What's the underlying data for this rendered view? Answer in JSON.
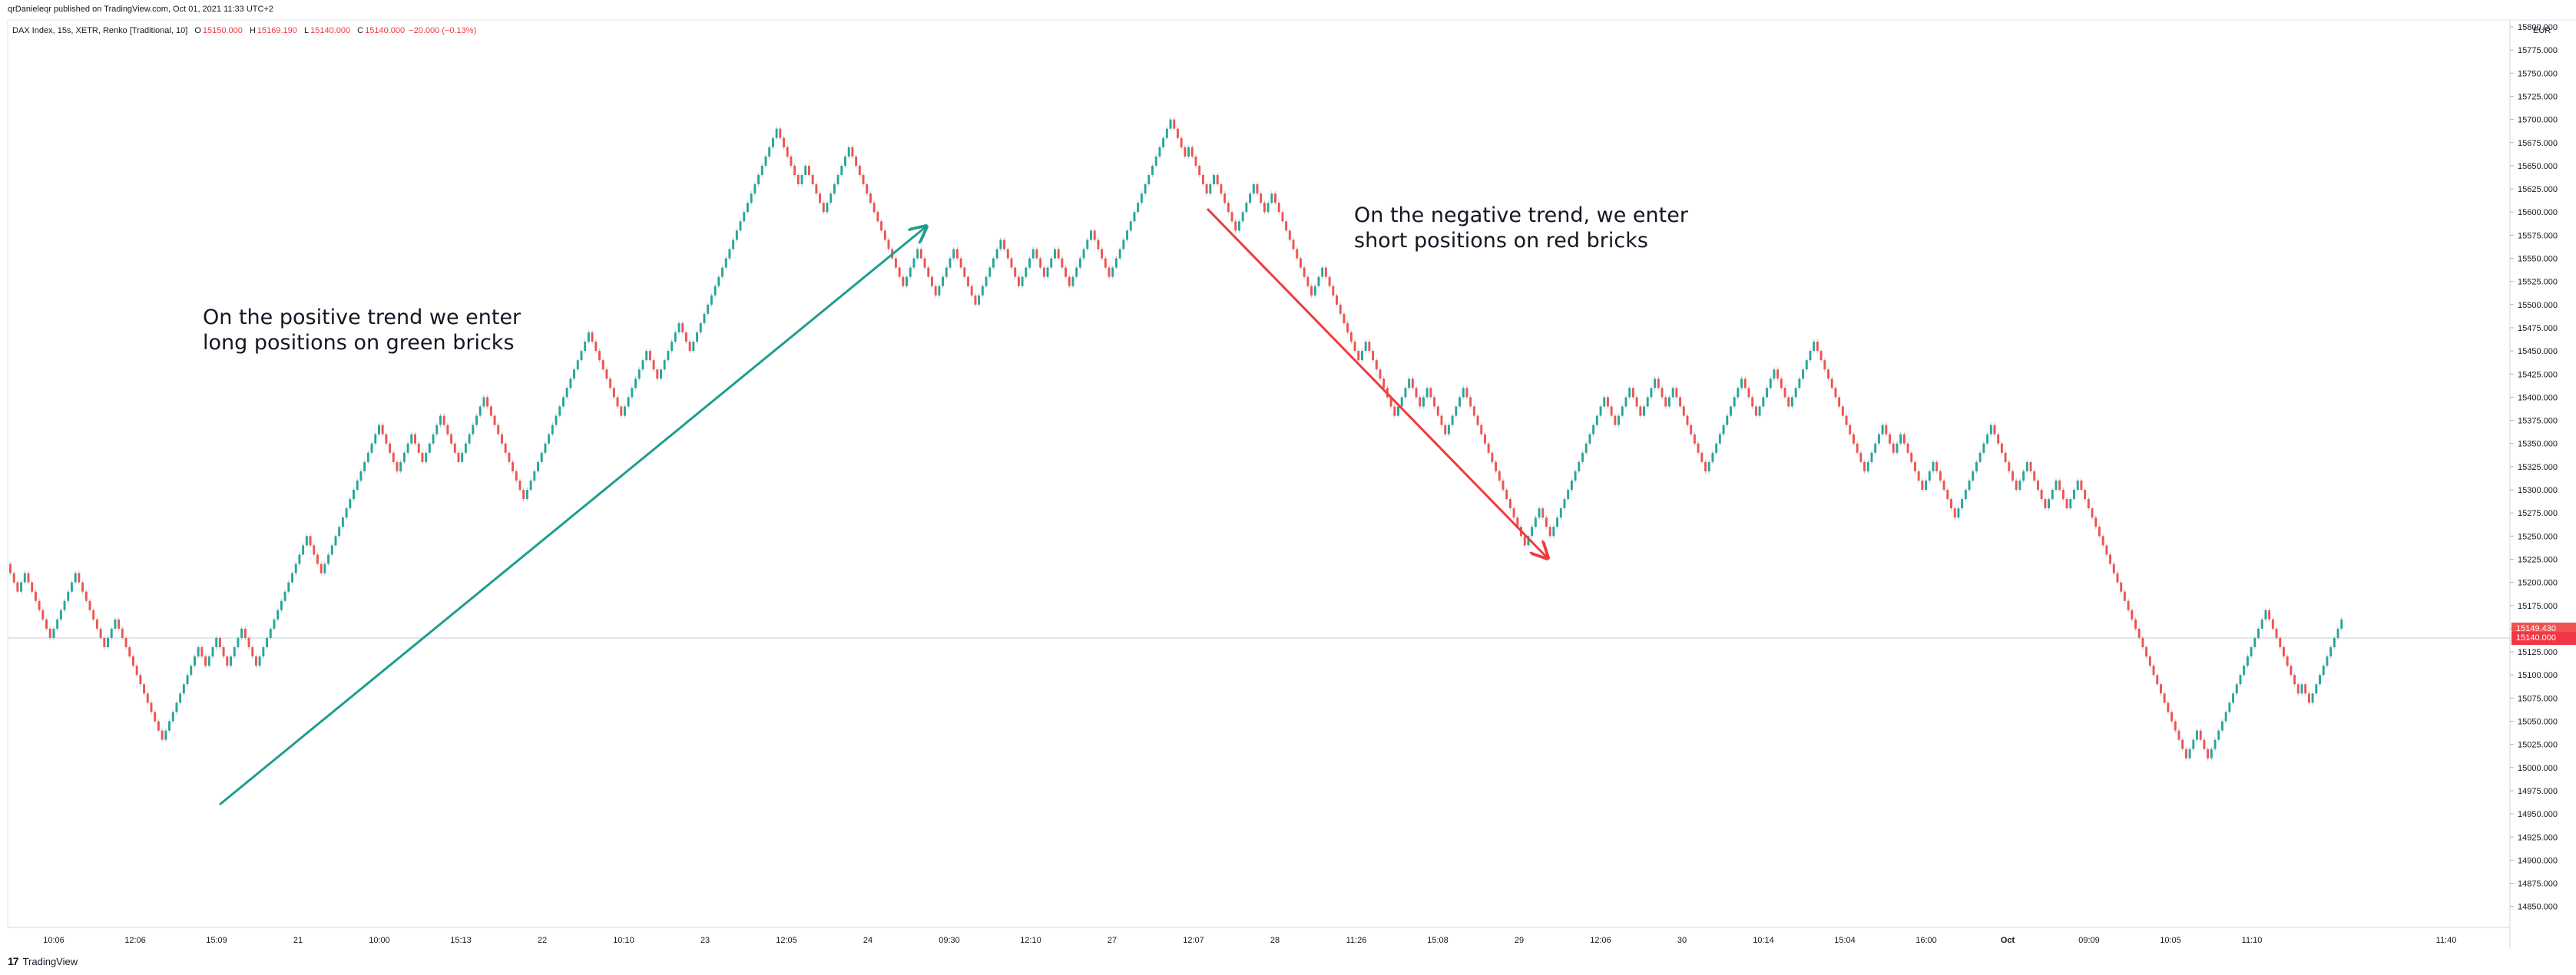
{
  "header": {
    "published_by": "qrDanieleqr published on TradingView.com, Oct 01, 2021 11:33 UTC+2",
    "symbol": "DAX Index, 15s, XETR, Renko [Traditional, 10]",
    "ohlc": [
      {
        "key": "O",
        "value": "15150.000"
      },
      {
        "key": "H",
        "value": "15169.190"
      },
      {
        "key": "L",
        "value": "15140.000"
      },
      {
        "key": "C",
        "value": "15140.000"
      }
    ],
    "change": "−20.000 (−0.13%)",
    "currency": "EUR"
  },
  "annotations": {
    "positive": [
      "On the positive trend we enter",
      "long positions on green bricks"
    ],
    "negative": [
      "On the negative trend, we enter",
      "short positions on red bricks"
    ]
  },
  "footer": {
    "logo": "17",
    "brand": "TradingView"
  },
  "colors": {
    "up": "#26a69a",
    "down": "#ef5350",
    "arrow_up": "#1f9e8f",
    "arrow_down": "#ef3b3b",
    "grid": "#e0e3eb"
  },
  "price_tags": {
    "current": "15149.430",
    "last": "15140.000"
  },
  "chart_data": {
    "type": "renko",
    "brick_size": 10,
    "ylim": [
      14825,
      15810
    ],
    "y_ticks": [
      15800,
      15775,
      15750,
      15725,
      15700,
      15675,
      15650,
      15625,
      15600,
      15575,
      15550,
      15525,
      15500,
      15475,
      15450,
      15425,
      15400,
      15375,
      15350,
      15325,
      15300,
      15275,
      15250,
      15225,
      15200,
      15175,
      15150,
      15125,
      15100,
      15075,
      15050,
      15025,
      15000,
      14975,
      14950,
      14925,
      14900,
      14875,
      14850
    ],
    "x_labels": [
      "10:06",
      "12:06",
      "15:09",
      "21",
      "10:00",
      "15:13",
      "22",
      "10:10",
      "23",
      "12:05",
      "24",
      "09:30",
      "12:10",
      "27",
      "12:07",
      "28",
      "11:26",
      "15:08",
      "29",
      "12:06",
      "30",
      "10:14",
      "15:04",
      "16:00",
      "Oct",
      "09:09",
      "10:05",
      "11:10",
      "11:40"
    ],
    "x_label_bold": [
      "Oct"
    ],
    "price_path": [
      15220,
      15190,
      15210,
      15140,
      15210,
      15130,
      15160,
      15130,
      15030,
      15130,
      15110,
      15140,
      15110,
      15150,
      15110,
      15140,
      15250,
      15210,
      15370,
      15320,
      15360,
      15330,
      15380,
      15330,
      15400,
      15350,
      15290,
      15470,
      15380,
      15450,
      15420,
      15480,
      15450,
      15520,
      15690,
      15630,
      15650,
      15600,
      15670,
      15590,
      15520,
      15560,
      15510,
      15560,
      15500,
      15570,
      15520,
      15560,
      15530,
      15560,
      15520,
      15580,
      15530,
      15700,
      15660,
      15670,
      15620,
      15640,
      15580,
      15630,
      15600,
      15620,
      15510,
      15540,
      15440,
      15460,
      15420,
      15400,
      15380,
      15420,
      15390,
      15410,
      15360,
      15410,
      15380,
      15310,
      15240,
      15280,
      15250,
      15400,
      15370,
      15410,
      15380,
      15420,
      15390,
      15410,
      15320,
      15420,
      15380,
      15430,
      15390,
      15460,
      15420,
      15400,
      15320,
      15370,
      15340,
      15360,
      15300,
      15330,
      15270,
      15370,
      15300,
      15330,
      15280,
      15310,
      15280,
      15310,
      15010,
      15040,
      15010,
      15100,
      15170,
      15080,
      15090,
      15070,
      15090,
      15150,
      15160
    ]
  }
}
